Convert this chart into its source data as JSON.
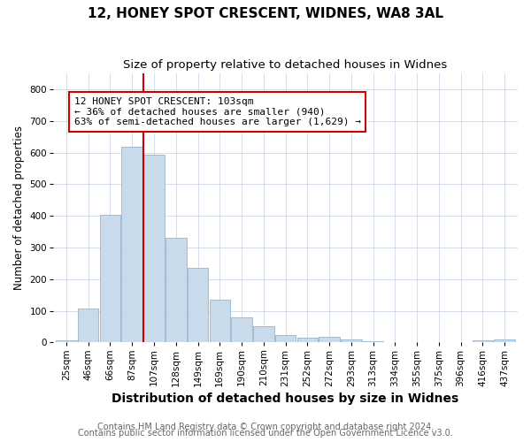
{
  "title": "12, HONEY SPOT CRESCENT, WIDNES, WA8 3AL",
  "subtitle": "Size of property relative to detached houses in Widnes",
  "xlabel": "Distribution of detached houses by size in Widnes",
  "ylabel": "Number of detached properties",
  "bins": [
    "25sqm",
    "46sqm",
    "66sqm",
    "87sqm",
    "107sqm",
    "128sqm",
    "149sqm",
    "169sqm",
    "190sqm",
    "210sqm",
    "231sqm",
    "252sqm",
    "272sqm",
    "293sqm",
    "313sqm",
    "334sqm",
    "355sqm",
    "375sqm",
    "396sqm",
    "416sqm",
    "437sqm"
  ],
  "values": [
    8,
    107,
    403,
    618,
    592,
    332,
    237,
    135,
    79,
    51,
    24,
    15,
    18,
    9,
    4,
    2,
    0,
    0,
    0,
    8,
    10
  ],
  "bar_color": "#c9daea",
  "bar_edge_color": "#9bbdd4",
  "vline_x_index": 4,
  "vline_color": "#cc0000",
  "annotation_text": "12 HONEY SPOT CRESCENT: 103sqm\n← 36% of detached houses are smaller (940)\n63% of semi-detached houses are larger (1,629) →",
  "annotation_box_color": "#ffffff",
  "annotation_box_edge": "#cc0000",
  "ylim": [
    0,
    850
  ],
  "yticks": [
    0,
    100,
    200,
    300,
    400,
    500,
    600,
    700,
    800
  ],
  "footnote1": "Contains HM Land Registry data © Crown copyright and database right 2024.",
  "footnote2": "Contains public sector information licensed under the Open Government Licence v3.0.",
  "title_fontsize": 11,
  "subtitle_fontsize": 9.5,
  "xlabel_fontsize": 10,
  "ylabel_fontsize": 8.5,
  "tick_fontsize": 7.5,
  "annotation_fontsize": 8,
  "footnote_fontsize": 7
}
